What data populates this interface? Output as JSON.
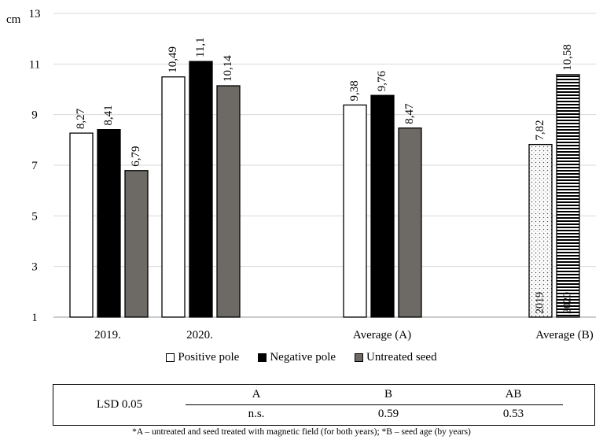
{
  "chart_data": {
    "type": "bar",
    "ylabel": "cm",
    "ylim": [
      1,
      13
    ],
    "yticks": [
      1,
      3,
      5,
      7,
      9,
      11,
      13
    ],
    "grid": true,
    "groups": [
      {
        "label": "2019.",
        "bars": [
          {
            "series": "Positive pole",
            "value": 8.27,
            "label": "8,27"
          },
          {
            "series": "Negative pole",
            "value": 8.41,
            "label": "8,41"
          },
          {
            "series": "Untreated seed",
            "value": 6.79,
            "label": "6,79"
          }
        ]
      },
      {
        "label": "2020.",
        "bars": [
          {
            "series": "Positive pole",
            "value": 10.49,
            "label": "10,49"
          },
          {
            "series": "Negative pole",
            "value": 11.1,
            "label": "11,1"
          },
          {
            "series": "Untreated seed",
            "value": 10.14,
            "label": "10,14"
          }
        ]
      },
      {
        "label": "Average (A)",
        "bars": [
          {
            "series": "Positive pole",
            "value": 9.38,
            "label": "9,38"
          },
          {
            "series": "Negative pole",
            "value": 9.76,
            "label": "9,76"
          },
          {
            "series": "Untreated seed",
            "value": 8.47,
            "label": "8,47"
          }
        ]
      },
      {
        "label": "Average (B)",
        "bars": [
          {
            "series": "2019",
            "value": 7.82,
            "label": "7,82",
            "inner_label": "2019"
          },
          {
            "series": "2020",
            "value": 10.58,
            "label": "10,58",
            "inner_label": "2020"
          }
        ]
      }
    ],
    "legend": {
      "placement": "bottom",
      "items": [
        "Positive pole",
        "Negative pole",
        "Untreated seed"
      ]
    },
    "colors": {
      "Positive pole": "#ffffff",
      "Negative pole": "#000000",
      "Untreated seed": "#6d6a66",
      "2019": "dotted",
      "2020": "horizontal-stripes"
    }
  },
  "lsd_table": {
    "row_label": "LSD 0.05",
    "headers": [
      "A",
      "B",
      "AB"
    ],
    "values": [
      "n.s.",
      "0.59",
      "0.53"
    ]
  },
  "footnote": "*A – untreated and seed treated with magnetic field (for both years); *B – seed age (by years)"
}
